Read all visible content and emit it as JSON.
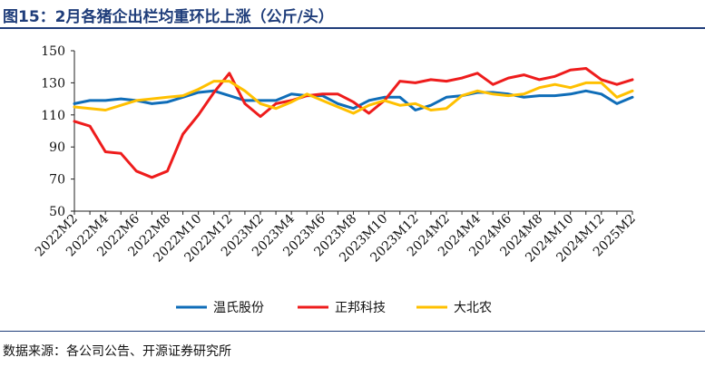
{
  "figure_title": "图15：2月各猪企出栏均重环比上涨（公斤/头）",
  "source_note": "数据来源：各公司公告、开源证券研究所",
  "colors": {
    "wens": "#0F6DB8",
    "zhengbang": "#EE1C1C",
    "dbn": "#FFC000",
    "accent": "#1F3D7A"
  },
  "chart_data": {
    "type": "line",
    "title": "2月各猪企出栏均重环比上涨（公斤/头）",
    "xlabel": "",
    "ylabel": "公斤/头",
    "ylim": [
      50,
      150
    ],
    "yticks": [
      50,
      70,
      90,
      110,
      130,
      150
    ],
    "grid": false,
    "legend_position": "bottom",
    "categories": [
      "2022M2",
      "2022M3",
      "2022M4",
      "2022M5",
      "2022M6",
      "2022M7",
      "2022M8",
      "2022M9",
      "2022M10",
      "2022M11",
      "2022M12",
      "2023M1",
      "2023M2",
      "2023M3",
      "2023M4",
      "2023M5",
      "2023M6",
      "2023M7",
      "2023M8",
      "2023M9",
      "2023M10",
      "2023M11",
      "2023M12",
      "2024M1",
      "2024M2",
      "2024M3",
      "2024M4",
      "2024M5",
      "2024M6",
      "2024M7",
      "2024M8",
      "2024M9",
      "2024M10",
      "2024M11",
      "2024M12",
      "2025M1",
      "2025M2"
    ],
    "tick_labels": [
      "2022M2",
      "2022M4",
      "2022M6",
      "2022M8",
      "2022M10",
      "2022M12",
      "2023M2",
      "2023M4",
      "2023M6",
      "2023M8",
      "2023M10",
      "2023M12",
      "2024M2",
      "2024M4",
      "2024M6",
      "2024M8",
      "2024M10",
      "2024M12",
      "2025M2"
    ],
    "series": [
      {
        "name": "温氏股份",
        "key": "wens",
        "values": [
          117,
          119,
          119,
          120,
          119,
          117,
          118,
          121,
          124,
          125,
          122,
          119,
          119,
          119,
          123,
          122,
          122,
          117,
          114,
          119,
          121,
          121,
          113,
          116,
          121,
          122,
          124,
          124,
          123,
          121,
          122,
          122,
          123,
          125,
          123,
          117,
          121
        ]
      },
      {
        "name": "正邦科技",
        "key": "zhengbang",
        "values": [
          106,
          103,
          87,
          86,
          75,
          71,
          75,
          98,
          110,
          124,
          136,
          117,
          109,
          117,
          119,
          122,
          123,
          123,
          118,
          111,
          119,
          131,
          130,
          132,
          131,
          133,
          136,
          129,
          133,
          135,
          132,
          134,
          138,
          139,
          132,
          129,
          132
        ]
      },
      {
        "name": "大北农",
        "key": "dbn",
        "values": [
          115,
          114,
          113,
          116,
          119,
          120,
          121,
          122,
          126,
          131,
          131,
          125,
          117,
          114,
          118,
          123,
          119,
          115,
          111,
          116,
          119,
          116,
          117,
          113,
          114,
          122,
          125,
          123,
          122,
          123,
          127,
          129,
          127,
          130,
          130,
          121,
          125
        ]
      }
    ]
  }
}
